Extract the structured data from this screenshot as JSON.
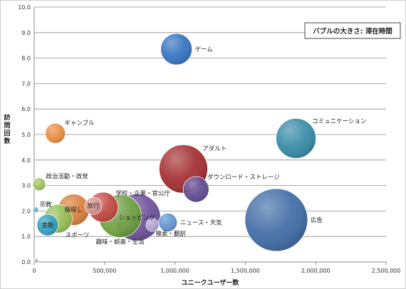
{
  "chart_data": {
    "type": "bubble",
    "title": "",
    "legend_note": "バブルの大きさ: 滞在時間",
    "xlabel": "ユニークユーザー数",
    "ylabel": "訪問回数",
    "xlim": [
      0,
      2500000
    ],
    "ylim": [
      0,
      10
    ],
    "x_ticks": [
      0,
      500000,
      1000000,
      1500000,
      2000000,
      2500000
    ],
    "x_tick_labels": [
      "0",
      "500,000",
      "1,000,000",
      "1,500,000",
      "2,000,000",
      "2,500,000"
    ],
    "y_ticks": [
      0,
      1,
      2,
      3,
      4,
      5,
      6,
      7,
      8,
      9,
      10
    ],
    "y_tick_labels": [
      "0.0",
      "1.0",
      "2.0",
      "3.0",
      "4.0",
      "5.0",
      "6.0",
      "7.0",
      "8.0",
      "9.0",
      "10.0"
    ],
    "grid": true,
    "points": [
      {
        "label": "ゲーム",
        "x": 1010000,
        "y": 8.35,
        "size": 22,
        "color": "#2e6fbf",
        "label_pos": "right"
      },
      {
        "label": "ギャンブル",
        "x": 150000,
        "y": 5.05,
        "size": 14,
        "color": "#e8893a",
        "label_pos": "upper-right"
      },
      {
        "label": "コミュニケーション",
        "x": 1860000,
        "y": 4.85,
        "size": 28,
        "color": "#2f87a3",
        "label_pos": "upper-right"
      },
      {
        "label": "アダルト",
        "x": 1060000,
        "y": 3.65,
        "size": 34,
        "color": "#a0272a",
        "label_pos": "upper-right"
      },
      {
        "label": "ダウンロード・ストレージ",
        "x": 1150000,
        "y": 2.85,
        "size": 18,
        "color": "#5b4590",
        "label_pos": "upper-right"
      },
      {
        "label": "政治活動・政党",
        "x": 35000,
        "y": 3.05,
        "size": 9,
        "color": "#98bf5e",
        "label_pos": "upper-right"
      },
      {
        "label": "学校・企業・官公庁",
        "x": 490000,
        "y": 2.15,
        "size": 21,
        "color": "#c44440",
        "label_pos": "upper-right"
      },
      {
        "label": "職探し",
        "x": 280000,
        "y": 2.05,
        "size": 22,
        "color": "#d87a36",
        "label_pos": "center"
      },
      {
        "label": "旅行",
        "x": 420000,
        "y": 2.2,
        "size": 12,
        "color": "#d99691",
        "label_pos": "center"
      },
      {
        "label": "趣味・娯楽・生活",
        "x": 610000,
        "y": 1.8,
        "size": 30,
        "color": "#6fa03e",
        "label_pos": "below"
      },
      {
        "label": "ショッピング",
        "x": 730000,
        "y": 1.75,
        "size": 33,
        "color": "#6a4d98",
        "label_pos": "center"
      },
      {
        "label": "宗教",
        "x": 10000,
        "y": 2.05,
        "size": 4,
        "color": "#5bafc6",
        "label_pos": "upper-right"
      },
      {
        "label": "スポーツ",
        "x": 170000,
        "y": 1.7,
        "size": 20,
        "color": "#8fbf4f",
        "label_pos": "lower-right"
      },
      {
        "label": "金融",
        "x": 95000,
        "y": 1.45,
        "size": 15,
        "color": "#2e9cc0",
        "label_pos": "center"
      },
      {
        "label": "ニュース・天気",
        "x": 950000,
        "y": 1.55,
        "size": 13,
        "color": "#5b8fd1",
        "label_pos": "right"
      },
      {
        "label": "検索・翻訳",
        "x": 840000,
        "y": 1.45,
        "size": 9,
        "color": "#b9a4d3",
        "label_pos": "lower-right"
      },
      {
        "label": "広告",
        "x": 1720000,
        "y": 1.65,
        "size": 44,
        "color": "#3b67a3",
        "label_pos": "right"
      },
      {
        "label": "",
        "x": 15000,
        "y": 0.05,
        "size": 3,
        "color": "#d8a070",
        "label_pos": "none"
      }
    ]
  }
}
